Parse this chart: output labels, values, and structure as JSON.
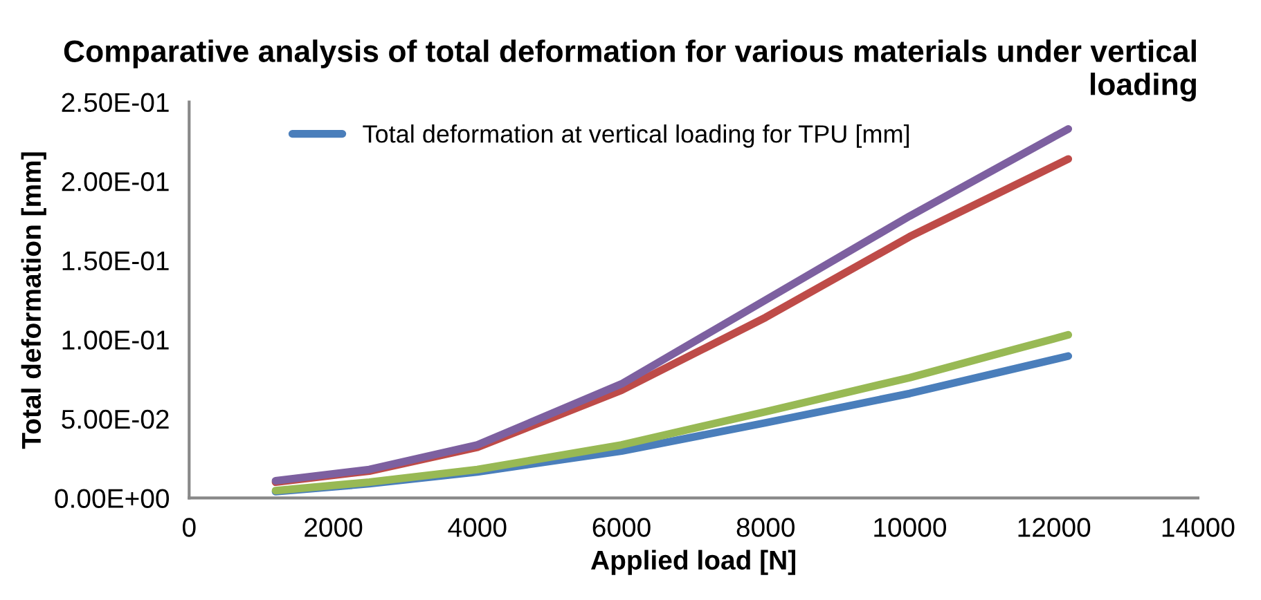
{
  "chart_data": {
    "type": "line",
    "title": "Comparative analysis of total deformation for various materials under vertical loading",
    "xlabel": "Applied load [N]",
    "ylabel": "Total deformation [mm]",
    "x": [
      1200,
      2500,
      4000,
      6000,
      8000,
      10000,
      12200
    ],
    "series": [
      {
        "name": "Total deformation at vertical loading for TPU [mm]",
        "color": "#4a7ebb",
        "values": [
          0.004,
          0.009,
          0.0165,
          0.0296,
          0.0475,
          0.066,
          0.0896
        ]
      },
      {
        "color": "#be4b48",
        "values": [
          0.01,
          0.017,
          0.032,
          0.068,
          0.114,
          0.165,
          0.214
        ]
      },
      {
        "color": "#98b954",
        "values": [
          0.0047,
          0.01,
          0.018,
          0.0335,
          0.0545,
          0.076,
          0.103
        ]
      },
      {
        "color": "#7d60a0",
        "values": [
          0.0109,
          0.018,
          0.0335,
          0.072,
          0.125,
          0.178,
          0.233
        ]
      }
    ],
    "xlim": [
      0,
      14000
    ],
    "xticks": [
      0,
      2000,
      4000,
      6000,
      8000,
      10000,
      12000,
      14000
    ],
    "ylim": [
      0,
      0.25
    ],
    "yticks": [
      {
        "value": 0,
        "label": "0.00E+00"
      },
      {
        "value": 0.05,
        "label": "5.00E-02"
      },
      {
        "value": 0.1,
        "label": "1.00E-01"
      },
      {
        "value": 0.15,
        "label": "1.50E-01"
      },
      {
        "value": 0.2,
        "label": "2.00E-01"
      },
      {
        "value": 0.25,
        "label": "2.50E-01"
      }
    ],
    "legend": "top left",
    "grid": false,
    "marker": "none",
    "line_style": "solid"
  }
}
